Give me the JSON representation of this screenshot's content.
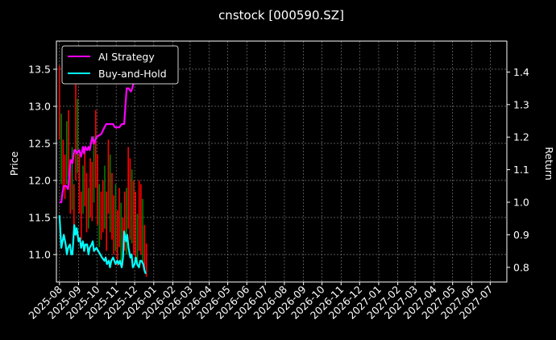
{
  "chart_data": {
    "type": "line",
    "title": "cnstock [000590.SZ]",
    "ylabel_left": "Price",
    "ylabel_right": "Return",
    "x_ticks": [
      "2025-08",
      "2025-09",
      "2025-10",
      "2025-11",
      "2025-12",
      "2026-01",
      "2026-02",
      "2026-03",
      "2026-04",
      "2026-05",
      "2026-06",
      "2026-07",
      "2026-08",
      "2026-09",
      "2026-10",
      "2026-11",
      "2026-12",
      "2027-01",
      "2027-02",
      "2027-03",
      "2027-04",
      "2027-05",
      "2027-06",
      "2027-07"
    ],
    "x_range": [
      "2025-07-27",
      "2027-07-28"
    ],
    "ylim_left": [
      10.63,
      13.88
    ],
    "ylim_right": [
      0.755,
      1.495
    ],
    "y_ticks_left": [
      11.0,
      11.5,
      12.0,
      12.5,
      13.0,
      13.5
    ],
    "y_ticks_right": [
      0.8,
      0.9,
      1.0,
      1.1,
      1.2,
      1.3,
      1.4
    ],
    "grid": true,
    "legend_position": "top-left",
    "series": [
      {
        "name": "AI Strategy",
        "axis": "right",
        "color": "#ff00ff",
        "x": [
          "2025-08-01",
          "2025-08-04",
          "2025-08-06",
          "2025-08-08",
          "2025-08-12",
          "2025-08-15",
          "2025-08-19",
          "2025-08-22",
          "2025-08-25",
          "2025-08-27",
          "2025-08-29",
          "2025-09-02",
          "2025-09-05",
          "2025-09-08",
          "2025-09-10",
          "2025-09-12",
          "2025-09-15",
          "2025-09-17",
          "2025-09-19",
          "2025-09-23",
          "2025-09-26",
          "2025-09-30",
          "2025-10-08",
          "2025-10-13",
          "2025-10-16",
          "2025-10-20",
          "2025-10-23",
          "2025-10-27",
          "2025-10-30",
          "2025-11-03",
          "2025-11-06",
          "2025-11-10",
          "2025-11-12",
          "2025-11-14",
          "2025-11-18",
          "2025-11-21",
          "2025-11-25",
          "2025-11-27",
          "2025-12-01",
          "2025-12-03",
          "2025-12-05"
        ],
        "values": [
          1.0,
          1.0,
          1.03,
          1.05,
          1.05,
          1.04,
          1.13,
          1.12,
          1.16,
          1.16,
          1.15,
          1.16,
          1.14,
          1.17,
          1.15,
          1.17,
          1.16,
          1.17,
          1.16,
          1.2,
          1.18,
          1.2,
          1.21,
          1.23,
          1.24,
          1.24,
          1.24,
          1.24,
          1.23,
          1.23,
          1.23,
          1.24,
          1.24,
          1.24,
          1.35,
          1.35,
          1.34,
          1.35,
          1.38,
          1.4,
          1.42
        ]
      },
      {
        "name": "Buy-and-Hold",
        "axis": "right",
        "color": "#00ffff",
        "x": [
          "2025-08-01",
          "2025-08-04",
          "2025-08-06",
          "2025-08-08",
          "2025-08-11",
          "2025-08-13",
          "2025-08-15",
          "2025-08-18",
          "2025-08-20",
          "2025-08-22",
          "2025-08-25",
          "2025-08-27",
          "2025-08-29",
          "2025-09-01",
          "2025-09-03",
          "2025-09-05",
          "2025-09-08",
          "2025-09-10",
          "2025-09-12",
          "2025-09-15",
          "2025-09-17",
          "2025-09-19",
          "2025-09-22",
          "2025-09-24",
          "2025-09-26",
          "2025-09-30",
          "2025-10-09",
          "2025-10-13",
          "2025-10-15",
          "2025-10-17",
          "2025-10-20",
          "2025-10-22",
          "2025-10-24",
          "2025-10-27",
          "2025-10-29",
          "2025-10-31",
          "2025-11-03",
          "2025-11-05",
          "2025-11-07",
          "2025-11-10",
          "2025-11-12",
          "2025-11-14",
          "2025-11-17",
          "2025-11-19",
          "2025-11-21",
          "2025-11-24",
          "2025-11-26",
          "2025-11-28",
          "2025-12-01",
          "2025-12-03",
          "2025-12-05",
          "2025-12-08",
          "2025-12-10",
          "2025-12-12",
          "2025-12-15",
          "2025-12-17",
          "2025-12-19"
        ],
        "values": [
          0.96,
          0.86,
          0.88,
          0.9,
          0.87,
          0.84,
          0.86,
          0.87,
          0.84,
          0.84,
          0.93,
          0.9,
          0.92,
          0.88,
          0.89,
          0.86,
          0.88,
          0.85,
          0.87,
          0.87,
          0.84,
          0.86,
          0.87,
          0.88,
          0.85,
          0.86,
          0.83,
          0.82,
          0.83,
          0.81,
          0.82,
          0.8,
          0.82,
          0.83,
          0.82,
          0.81,
          0.82,
          0.81,
          0.82,
          0.8,
          0.83,
          0.91,
          0.88,
          0.9,
          0.86,
          0.83,
          0.84,
          0.8,
          0.81,
          0.83,
          0.81,
          0.8,
          0.82,
          0.82,
          0.81,
          0.79,
          0.78
        ]
      }
    ],
    "candlesticks": {
      "axis": "left",
      "up_color": "#008000",
      "down_color": "#ff0000",
      "x_start": "2025-08-01",
      "x_end": "2025-12-20",
      "highs": [
        13.55,
        12.9,
        12.55,
        12.35,
        12.8,
        12.95,
        12.2,
        12.45,
        11.95,
        13.35,
        13.1,
        12.35,
        11.85,
        12.2,
        12.45,
        12.1,
        11.9,
        12.3,
        12.25,
        12.6,
        12.95,
        12.35,
        11.95,
        11.85,
        12.0,
        12.2,
        11.85,
        12.55,
        12.35,
        12.1,
        11.8,
        11.95,
        11.6,
        11.9,
        11.7,
        11.5,
        11.85,
        11.9,
        12.45,
        12.3,
        12.15,
        12.0,
        11.85,
        11.55,
        12.0,
        11.95,
        11.75,
        11.4,
        11.15
      ],
      "lows": [
        12.55,
        11.95,
        11.85,
        11.75,
        11.95,
        12.05,
        11.55,
        11.6,
        11.35,
        12.0,
        12.1,
        11.55,
        11.2,
        11.55,
        11.65,
        11.3,
        11.35,
        11.5,
        11.45,
        11.7,
        11.9,
        11.4,
        11.1,
        11.2,
        11.3,
        11.35,
        11.05,
        11.55,
        11.3,
        11.2,
        11.0,
        11.05,
        10.85,
        11.1,
        10.9,
        10.85,
        11.05,
        11.0,
        11.35,
        11.2,
        11.15,
        11.0,
        10.95,
        10.85,
        11.05,
        11.0,
        10.9,
        10.8,
        10.7
      ]
    }
  }
}
